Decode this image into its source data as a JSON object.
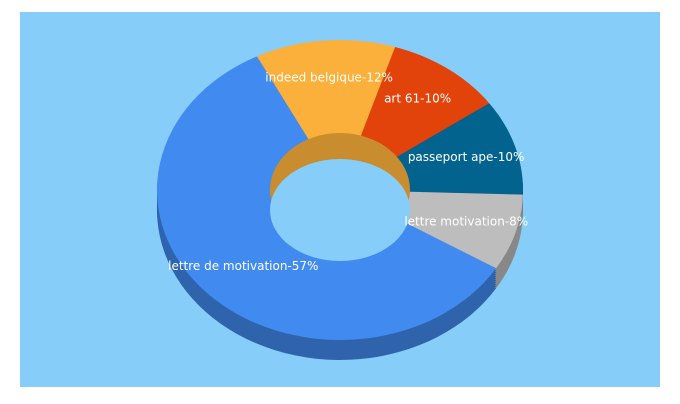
{
  "chart_data": {
    "type": "donut3d",
    "values": [
      12,
      10,
      10,
      8,
      57
    ],
    "value_labels": [
      "indeed belgique-12%",
      "art 61-10%",
      "passeport ape-10%",
      "lettre motivation-8%",
      "lettre de motivation-57%"
    ],
    "colors": [
      "#fbb03b",
      "#e2430b",
      "#03638f",
      "#bdbdbd",
      "#418bf0"
    ],
    "background": "#87cdfa"
  }
}
